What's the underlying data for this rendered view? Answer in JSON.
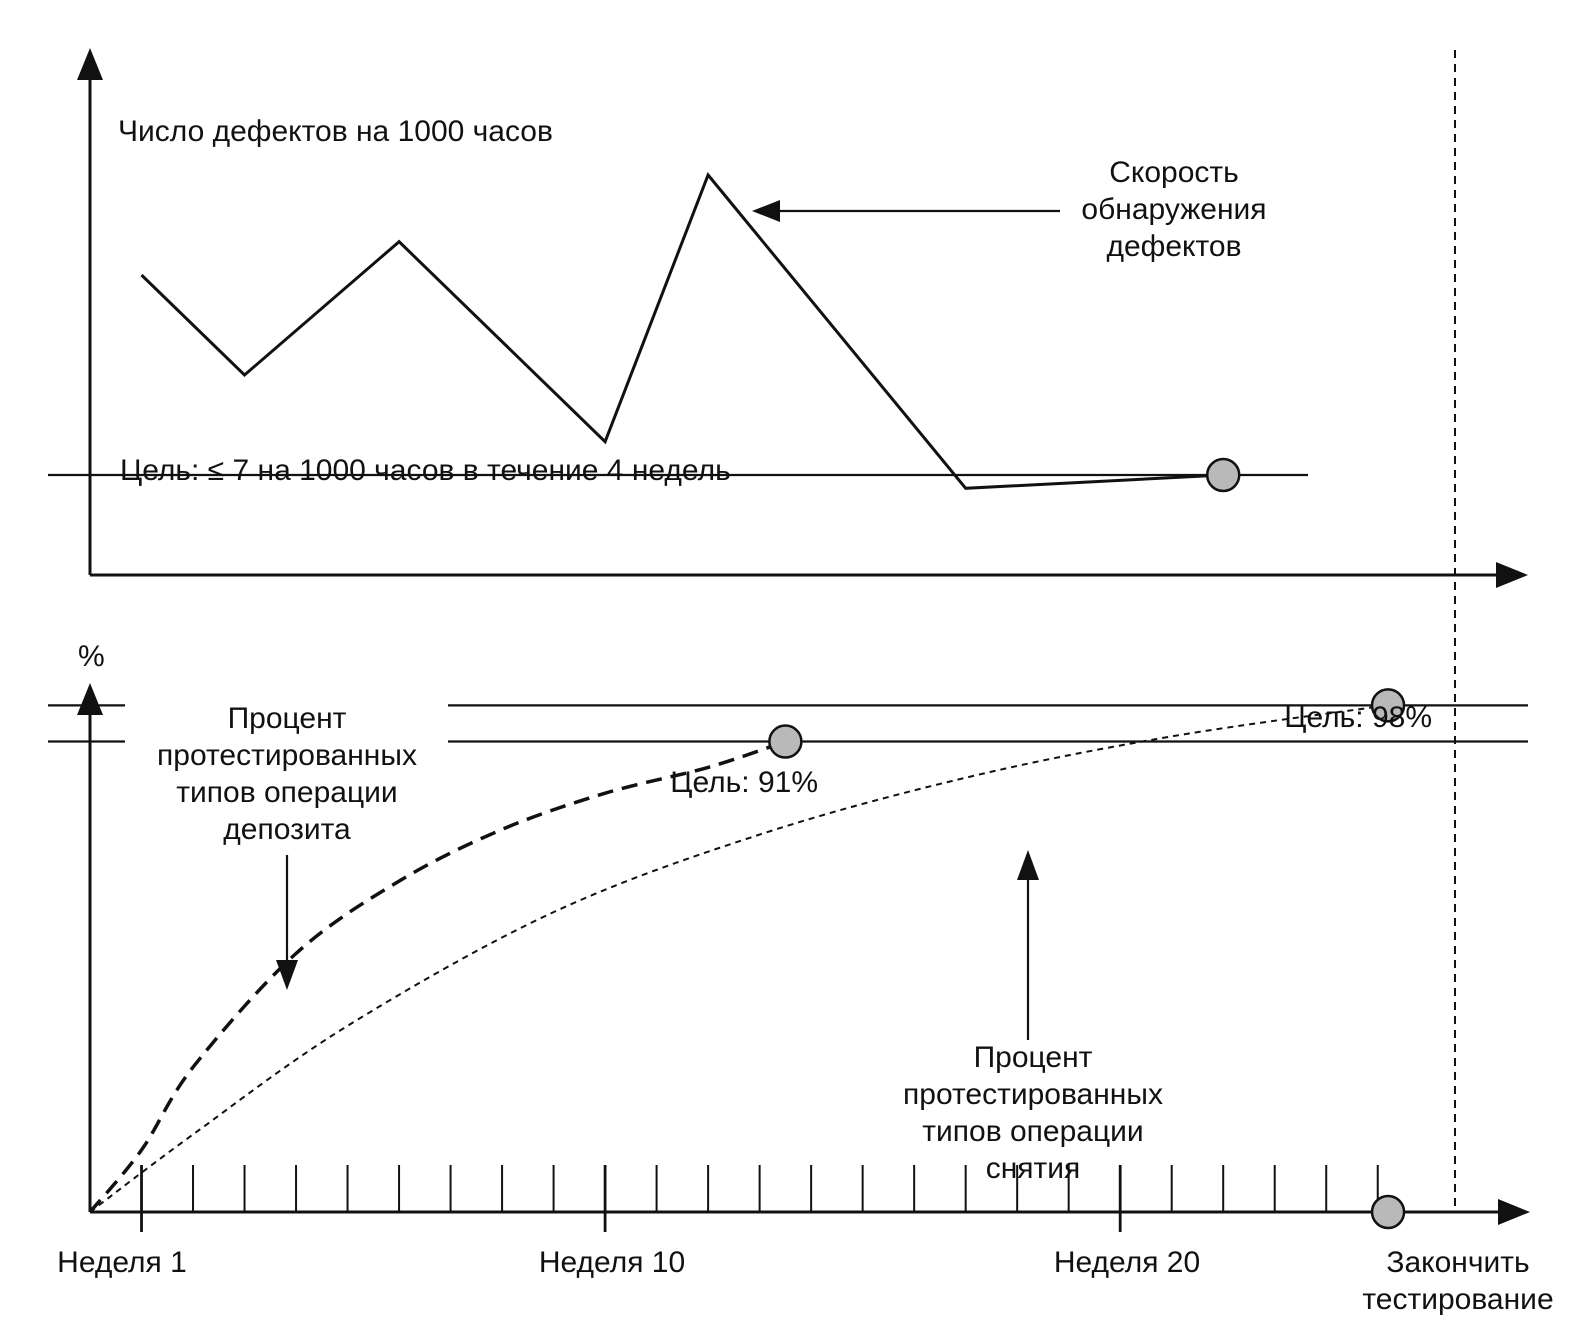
{
  "chart_data": [
    {
      "type": "line",
      "ylabel": "Число дефектов на 1000 часов",
      "series": [
        {
          "name": "Скорость обнаружения дефектов",
          "x": [
            1,
            3,
            6,
            10,
            12,
            17,
            22
          ],
          "y": [
            10,
            8.5,
            10.5,
            7.5,
            11.5,
            6.8,
            7
          ]
        }
      ],
      "goal": {
        "label": "Цель: ≤ 7 на 1000 часов в течение 4 недель",
        "y": 7
      },
      "annotation": [
        "Скорость",
        "обнаружения",
        "дефектов"
      ],
      "ylim": [
        5.5,
        13
      ]
    },
    {
      "type": "line",
      "ylabel": "%",
      "xtick_labels": [
        {
          "x": 1,
          "label": "Неделя 1"
        },
        {
          "x": 10,
          "label": "Неделя 10"
        },
        {
          "x": 20,
          "label": "Неделя 20"
        },
        {
          "x": 25.2,
          "label": "Закончить тестирование"
        }
      ],
      "xlim": [
        0,
        26.5
      ],
      "ylim": [
        0,
        100
      ],
      "series": [
        {
          "name": "Процент протестированных типов операции депозита",
          "x": [
            0,
            1,
            2,
            4,
            6,
            8,
            10,
            12,
            13.5
          ],
          "y": [
            0,
            12,
            28,
            50,
            64,
            74,
            81,
            86,
            91
          ]
        },
        {
          "name": "Процент протестированных типов операции снятия",
          "x": [
            0,
            2,
            5,
            9,
            13,
            17,
            21,
            25.2
          ],
          "y": [
            0,
            15,
            36,
            58,
            73,
            84,
            92,
            98
          ]
        }
      ],
      "goals": [
        {
          "label": "Цель: 91%",
          "y": 91,
          "x": 13.5
        },
        {
          "label": "Цель: 98%",
          "y": 98,
          "x": 25.2
        }
      ],
      "annotations": {
        "deposit": [
          "Процент",
          "протестированных",
          "типов операции",
          "депозита"
        ],
        "withdrawal": [
          "Процент",
          "протестированных",
          "типов операции",
          "снятия"
        ]
      },
      "end_label": [
        "Закончить",
        "тестирование"
      ]
    }
  ]
}
